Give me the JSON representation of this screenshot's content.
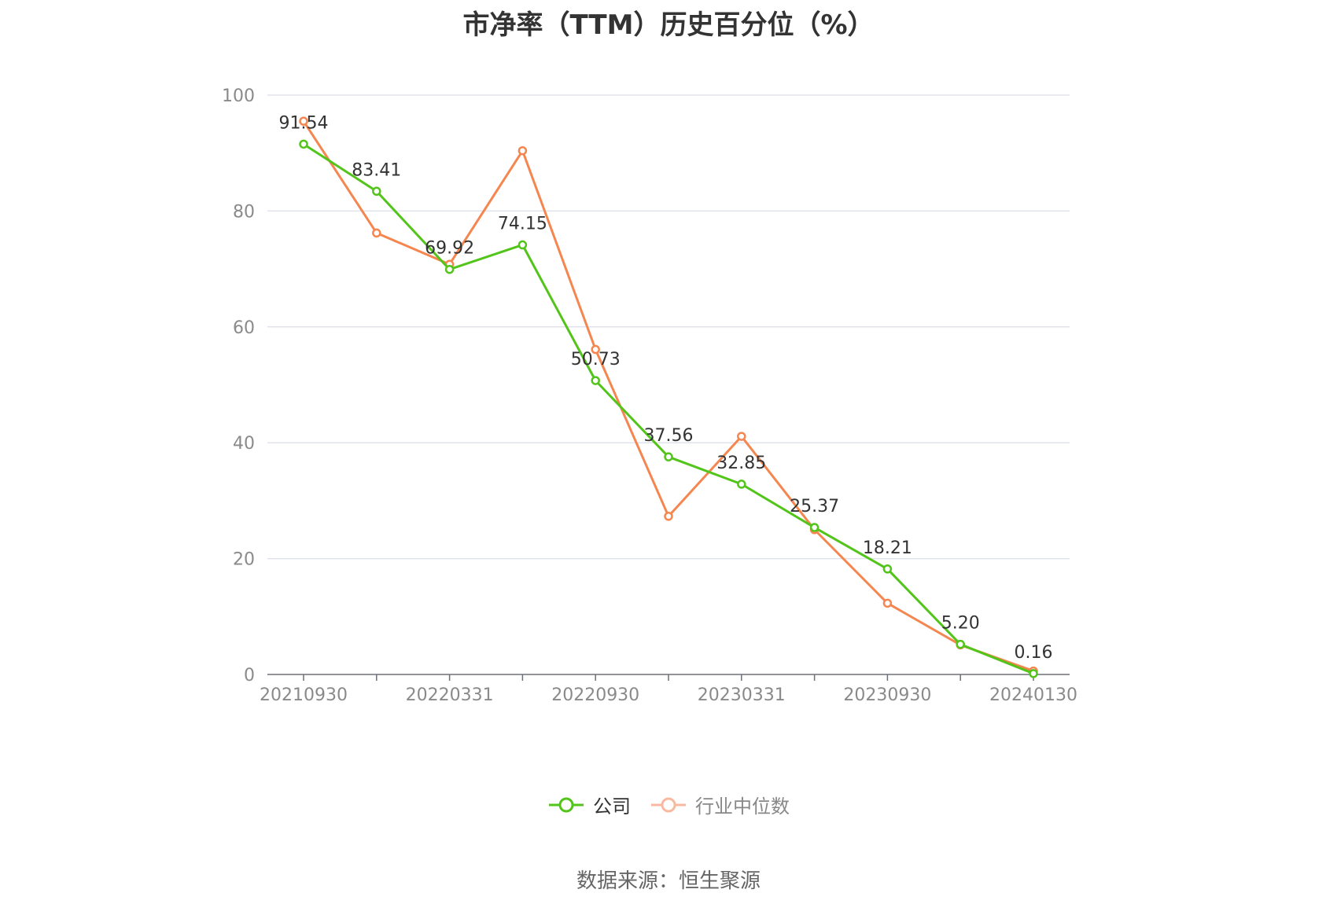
{
  "title": "市净率（TTM）历史百分位（%）",
  "source": "数据来源：恒生聚源",
  "colors": {
    "company": "#52c41a",
    "industry": "#f5864f",
    "grid": "#e0e3eb",
    "axis": "#6e7079"
  },
  "chart_data": {
    "type": "line",
    "title": "市净率（TTM）历史百分位（%）",
    "xlabel": "",
    "ylabel": "",
    "ylim": [
      0,
      100
    ],
    "yticks": [
      0,
      20,
      40,
      60,
      80,
      100
    ],
    "grid": true,
    "legend_position": "bottom",
    "x": [
      "20210930",
      "20211231",
      "20220331",
      "20220630",
      "20220930",
      "20221231",
      "20230331",
      "20230630",
      "20230930",
      "20231231",
      "20240130"
    ],
    "x_tick_labels": [
      "20210930",
      "20220331",
      "20220930",
      "20230331",
      "20230930",
      "20240130"
    ],
    "series": [
      {
        "name": "公司",
        "color": "#52c41a",
        "show_labels": true,
        "labels": [
          "91.54",
          "83.41",
          "69.92",
          "74.15",
          "50.73",
          "37.56",
          "32.85",
          "25.37",
          "18.21",
          "5.20",
          "0.16"
        ],
        "values": [
          91.54,
          83.41,
          69.92,
          74.15,
          50.73,
          37.56,
          32.85,
          25.37,
          18.21,
          5.2,
          0.16
        ]
      },
      {
        "name": "行业中位数",
        "color": "#f5864f",
        "show_labels": false,
        "values": [
          95.5,
          76.2,
          70.8,
          90.4,
          56.1,
          27.3,
          41.1,
          25.0,
          12.3,
          5.1,
          0.6
        ]
      }
    ]
  }
}
